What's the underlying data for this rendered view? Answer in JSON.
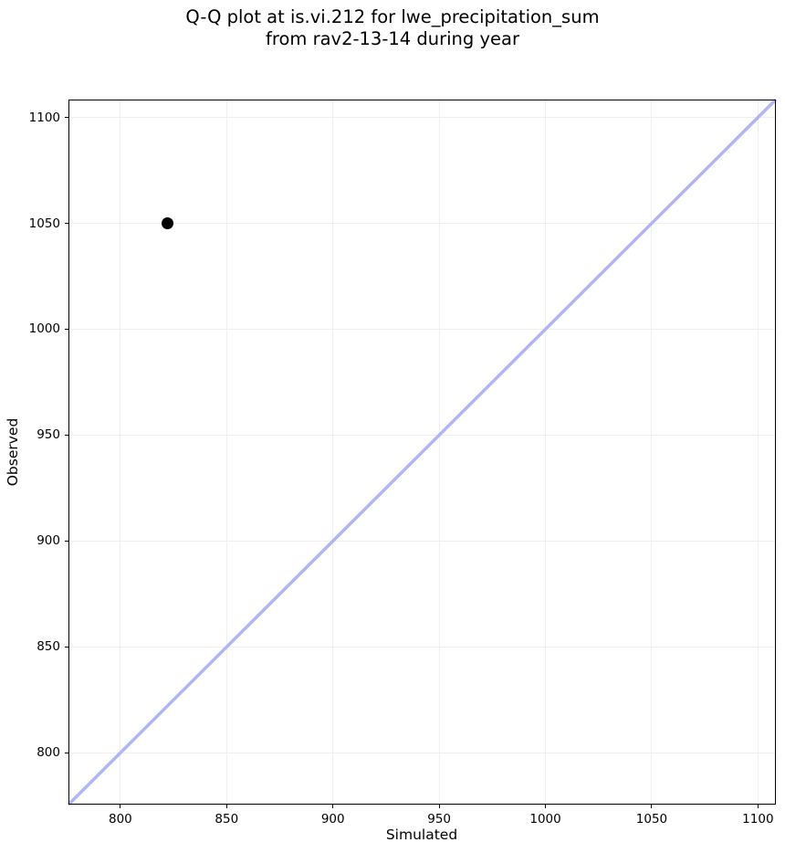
{
  "figure": {
    "title_line1": "Q-Q plot at is.vi.212 for lwe_precipitation_sum",
    "title_line2": "from rav2-13-14 during year"
  },
  "chart_data": {
    "type": "scatter",
    "title": "Q-Q plot at is.vi.212 for lwe_precipitation_sum\nfrom rav2-13-14 during year",
    "xlabel": "Simulated",
    "ylabel": "Observed",
    "xlim": [
      776,
      1108
    ],
    "ylim": [
      776,
      1108
    ],
    "xticks": [
      800,
      850,
      900,
      950,
      1000,
      1050,
      1100
    ],
    "yticks": [
      800,
      850,
      900,
      950,
      1000,
      1050,
      1100
    ],
    "grid": true,
    "legend": null,
    "points": [
      {
        "x": 822,
        "y": 1050
      }
    ],
    "reference_line": {
      "kind": "identity",
      "x1": 776,
      "y1": 776,
      "x2": 1108,
      "y2": 1108
    },
    "colors": {
      "point": "#000000",
      "reference_line": "#b1b5f4",
      "grid": "#efefef",
      "axis": "#000000",
      "background": "#ffffff"
    }
  }
}
